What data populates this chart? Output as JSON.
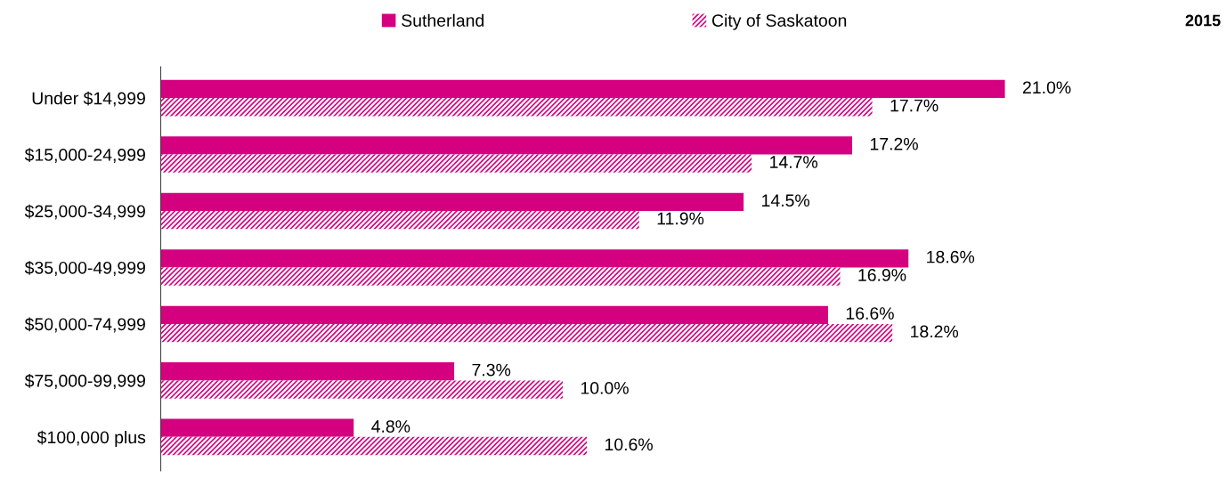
{
  "chart_data": {
    "type": "bar",
    "orientation": "horizontal",
    "annotations": [
      "2015"
    ],
    "categories": [
      "Under $14,999",
      "$15,000-24,999",
      "$25,000-34,999",
      "$35,000-49,999",
      "$50,000-74,999",
      "$75,000-99,999",
      "$100,000 plus"
    ],
    "series": [
      {
        "name": "Sutherland",
        "color": "#d5007f",
        "values": [
          21.0,
          17.2,
          14.5,
          18.6,
          16.6,
          7.3,
          4.8
        ],
        "value_labels": [
          "21.0%",
          "17.2%",
          "14.5%",
          "18.6%",
          "16.6%",
          "7.3%",
          "4.8%"
        ]
      },
      {
        "name": "City of Saskatoon",
        "color": "#d5007f",
        "values": [
          17.7,
          14.7,
          11.9,
          16.9,
          18.2,
          10.0,
          10.6
        ],
        "value_labels": [
          "17.7%",
          "14.7%",
          "11.9%",
          "16.9%",
          "18.2%",
          "10.0%",
          "10.6%"
        ]
      }
    ],
    "legend": "top",
    "grid": false
  }
}
